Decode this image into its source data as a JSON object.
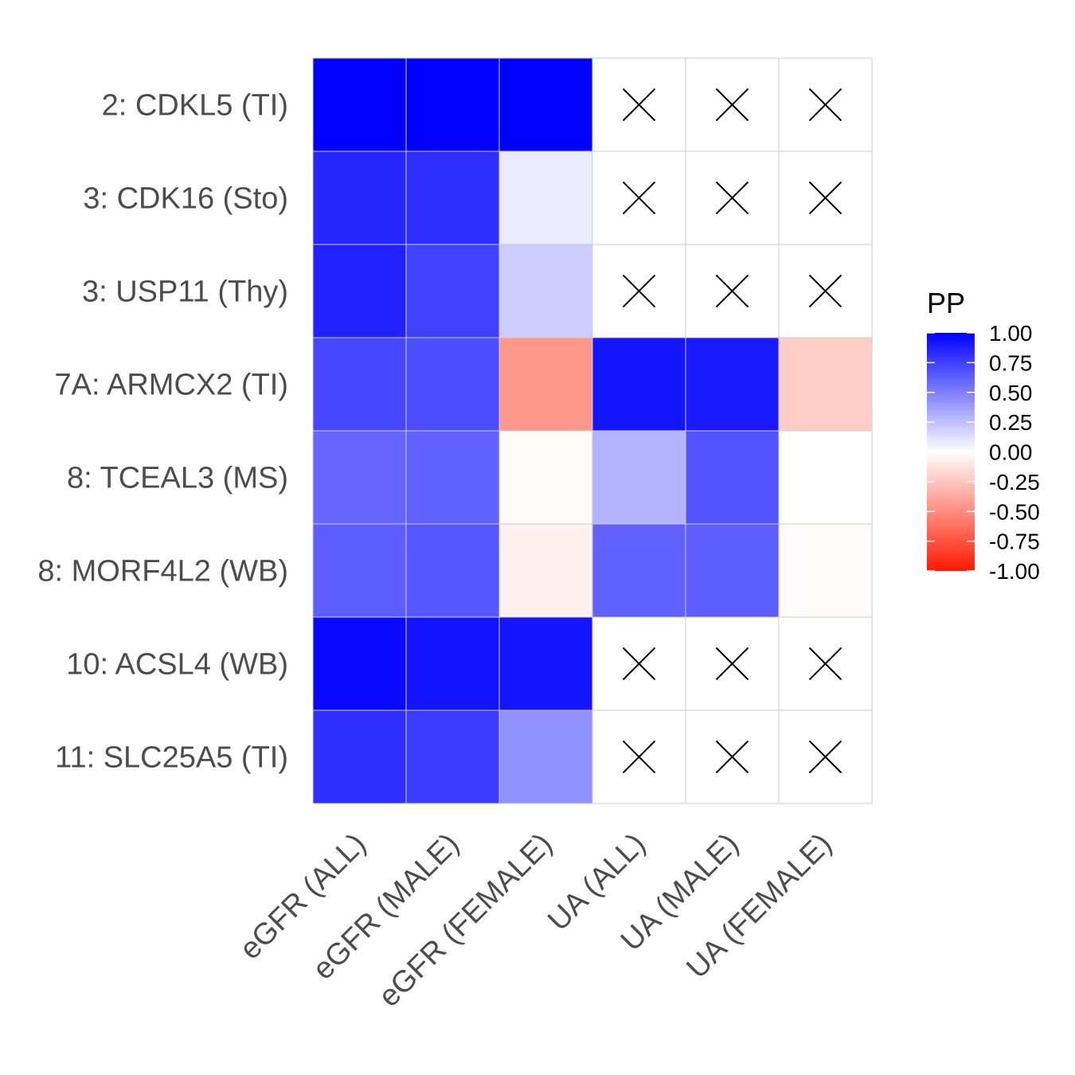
{
  "chart_data": {
    "type": "heatmap",
    "rows": [
      "2: CDKL5 (TI)",
      "3: CDK16 (Sto)",
      "3: USP11 (Thy)",
      "7A: ARMCX2 (TI)",
      "8: TCEAL3 (MS)",
      "8: MORF4L2 (WB)",
      "10: ACSL4 (WB)",
      "11: SLC25A5 (TI)"
    ],
    "columns": [
      "eGFR (ALL)",
      "eGFR (MALE)",
      "eGFR (FEMALE)",
      "UA (ALL)",
      "UA (MALE)",
      "UA (FEMALE)"
    ],
    "values": [
      [
        1.0,
        1.0,
        1.0,
        null,
        null,
        null
      ],
      [
        0.85,
        0.82,
        0.08,
        null,
        null,
        null
      ],
      [
        0.87,
        0.75,
        0.2,
        null,
        null,
        null
      ],
      [
        0.72,
        0.7,
        -0.45,
        0.92,
        0.9,
        -0.22
      ],
      [
        0.6,
        0.62,
        -0.02,
        0.3,
        0.68,
        0.0
      ],
      [
        0.63,
        0.66,
        -0.06,
        0.62,
        0.63,
        -0.02
      ],
      [
        0.97,
        0.93,
        0.92,
        null,
        null,
        null
      ],
      [
        0.82,
        0.77,
        0.43,
        null,
        null,
        null
      ]
    ],
    "missing_marker": "cross",
    "legend": {
      "title": "PP",
      "ticks": [
        "1.00",
        "0.75",
        "0.50",
        "0.25",
        "0.00",
        "-0.25",
        "-0.50",
        "-0.75",
        "-1.00"
      ],
      "tick_values": [
        1.0,
        0.75,
        0.5,
        0.25,
        0.0,
        -0.25,
        -0.5,
        -0.75,
        -1.0
      ],
      "placement": "right"
    },
    "color_scale": {
      "low": "#ff1a00",
      "mid": "#ffffff",
      "high": "#0000ff",
      "range": [
        -1,
        1
      ]
    },
    "missing_fill": "#ffffff",
    "grid_color": "#cccccc"
  }
}
